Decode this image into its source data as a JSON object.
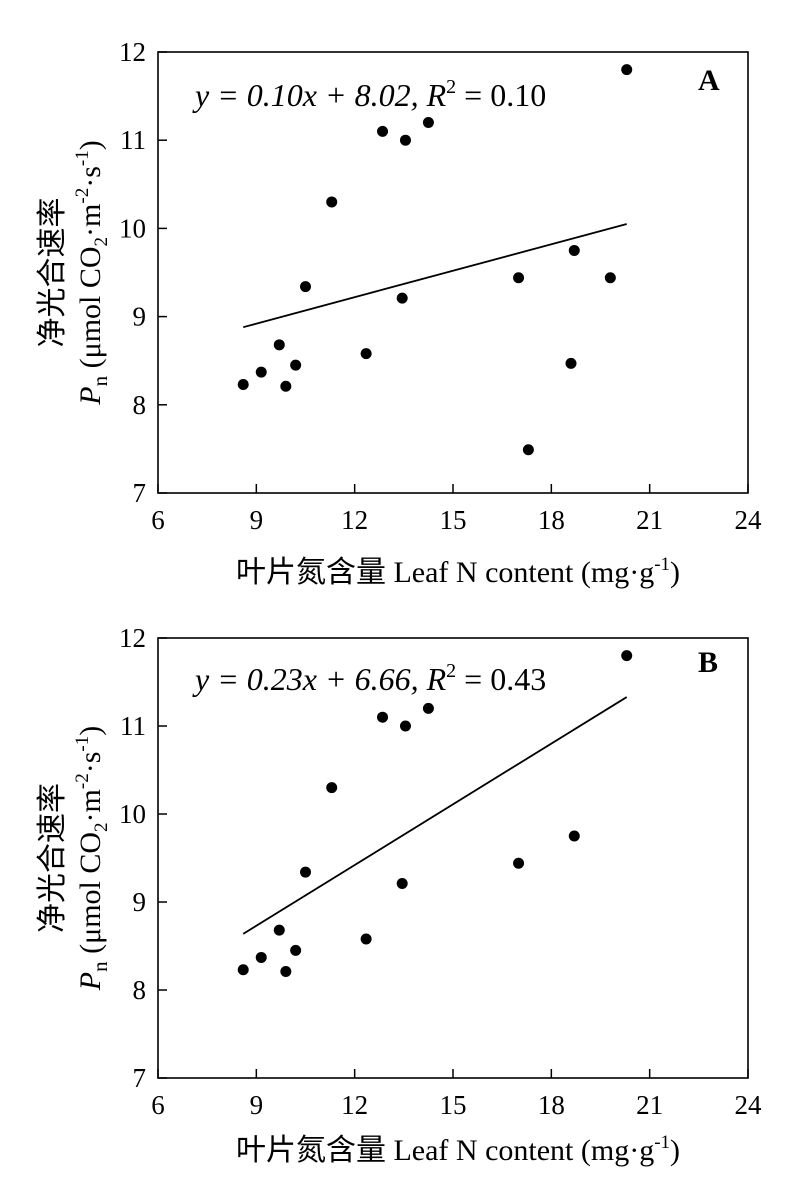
{
  "chart_data": [
    {
      "type": "scatter",
      "panel_label": "A",
      "xlabel_cn": "叶片氮含量",
      "xlabel_en": "Leaf N content (mg·g",
      "xlabel_unit_sup": "-1",
      "xlabel_close": ")",
      "ylabel_cn": "净光合速率",
      "ylabel_sym": "P",
      "ylabel_sub": "n",
      "ylabel_unit_a": "(μmol CO",
      "ylabel_unit_sub": "2",
      "ylabel_unit_b": "·m",
      "ylabel_unit_sup1": "-2",
      "ylabel_unit_c": "·s",
      "ylabel_unit_sup2": "-1",
      "ylabel_unit_d": ")",
      "equation_text": "y = 0.10x + 8.02, R",
      "equation_sup": "2",
      "equation_tail": " = 0.10",
      "xlim": [
        6,
        24
      ],
      "ylim": [
        7,
        12
      ],
      "xticks": [
        "6",
        "9",
        "12",
        "15",
        "18",
        "21",
        "24"
      ],
      "yticks": [
        "7",
        "8",
        "9",
        "10",
        "11",
        "12"
      ],
      "points": [
        {
          "x": 8.6,
          "y": 8.23
        },
        {
          "x": 9.15,
          "y": 8.37
        },
        {
          "x": 9.7,
          "y": 8.68
        },
        {
          "x": 9.9,
          "y": 8.21
        },
        {
          "x": 10.2,
          "y": 8.45
        },
        {
          "x": 10.5,
          "y": 9.34
        },
        {
          "x": 11.3,
          "y": 10.3
        },
        {
          "x": 12.35,
          "y": 8.58
        },
        {
          "x": 12.85,
          "y": 11.1
        },
        {
          "x": 13.45,
          "y": 9.21
        },
        {
          "x": 13.55,
          "y": 11.0
        },
        {
          "x": 14.25,
          "y": 11.2
        },
        {
          "x": 17.0,
          "y": 9.44
        },
        {
          "x": 17.3,
          "y": 7.49
        },
        {
          "x": 18.6,
          "y": 8.47
        },
        {
          "x": 18.7,
          "y": 9.75
        },
        {
          "x": 19.8,
          "y": 9.44
        },
        {
          "x": 20.3,
          "y": 11.8
        }
      ],
      "fit": {
        "slope": 0.1,
        "intercept": 8.02,
        "x_range": [
          8.6,
          20.3
        ]
      }
    },
    {
      "type": "scatter",
      "panel_label": "B",
      "xlabel_cn": "叶片氮含量",
      "xlabel_en": "Leaf N content (mg·g",
      "xlabel_unit_sup": "-1",
      "xlabel_close": ")",
      "ylabel_cn": "净光合速率",
      "ylabel_sym": "P",
      "ylabel_sub": "n",
      "ylabel_unit_a": "(μmol CO",
      "ylabel_unit_sub": "2",
      "ylabel_unit_b": "·m",
      "ylabel_unit_sup1": "-2",
      "ylabel_unit_c": "·s",
      "ylabel_unit_sup2": "-1",
      "ylabel_unit_d": ")",
      "equation_text": "y = 0.23x + 6.66, R",
      "equation_sup": "2",
      "equation_tail": " = 0.43",
      "xlim": [
        6,
        24
      ],
      "ylim": [
        7,
        12
      ],
      "xticks": [
        "6",
        "9",
        "12",
        "15",
        "18",
        "21",
        "24"
      ],
      "yticks": [
        "7",
        "8",
        "9",
        "10",
        "11",
        "12"
      ],
      "points": [
        {
          "x": 8.6,
          "y": 8.23
        },
        {
          "x": 9.15,
          "y": 8.37
        },
        {
          "x": 9.7,
          "y": 8.68
        },
        {
          "x": 9.9,
          "y": 8.21
        },
        {
          "x": 10.2,
          "y": 8.45
        },
        {
          "x": 10.5,
          "y": 9.34
        },
        {
          "x": 11.3,
          "y": 10.3
        },
        {
          "x": 12.35,
          "y": 8.58
        },
        {
          "x": 12.85,
          "y": 11.1
        },
        {
          "x": 13.45,
          "y": 9.21
        },
        {
          "x": 13.55,
          "y": 11.0
        },
        {
          "x": 14.25,
          "y": 11.2
        },
        {
          "x": 17.0,
          "y": 9.44
        },
        {
          "x": 18.7,
          "y": 9.75
        },
        {
          "x": 20.3,
          "y": 11.8
        }
      ],
      "fit": {
        "slope": 0.23,
        "intercept": 6.66,
        "x_range": [
          8.6,
          20.3
        ]
      }
    }
  ]
}
